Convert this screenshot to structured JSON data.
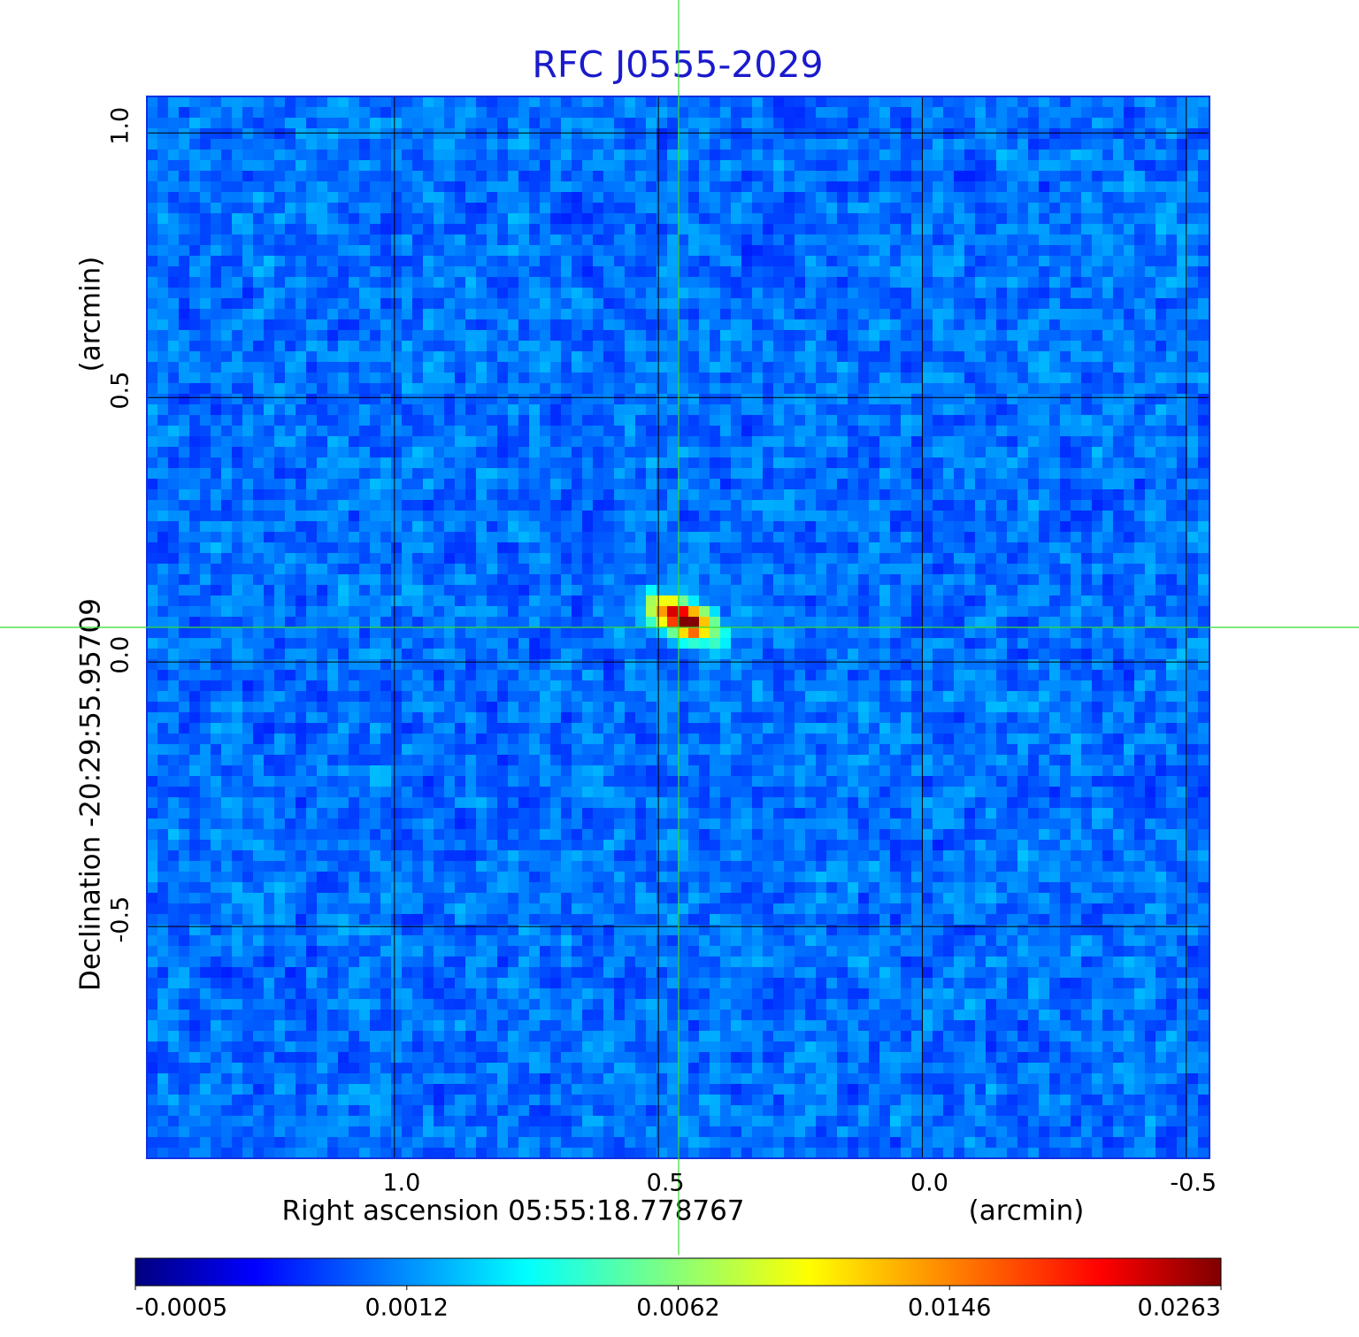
{
  "chart_data": {
    "type": "image",
    "title": "RFC J0555-2029",
    "xlabel": "Right ascension  05:55:18.778767",
    "xunit": "(arcmin)",
    "ylabel": "Declination  -20:29:55.95709",
    "yunit": "(arcmin)",
    "xlim": [
      1.469,
      -0.544
    ],
    "ylim": [
      -0.938,
      1.069
    ],
    "xticks": [
      {
        "value": 1,
        "label": "1.0"
      },
      {
        "value": 0.5,
        "label": "0.5"
      },
      {
        "value": 0,
        "label": "0.0"
      },
      {
        "value": -0.5,
        "label": "-0.5"
      }
    ],
    "yticks": [
      {
        "value": 1,
        "label": "1.0"
      },
      {
        "value": 0.5,
        "label": "0.5"
      },
      {
        "value": 0,
        "label": "0.0"
      },
      {
        "value": -0.5,
        "label": "-0.5"
      }
    ],
    "grid": true,
    "colormap": "jet",
    "colorbar_ticks": [
      -0.0005,
      0.0012,
      0.0062,
      0.0146,
      0.0263
    ]
  }
}
